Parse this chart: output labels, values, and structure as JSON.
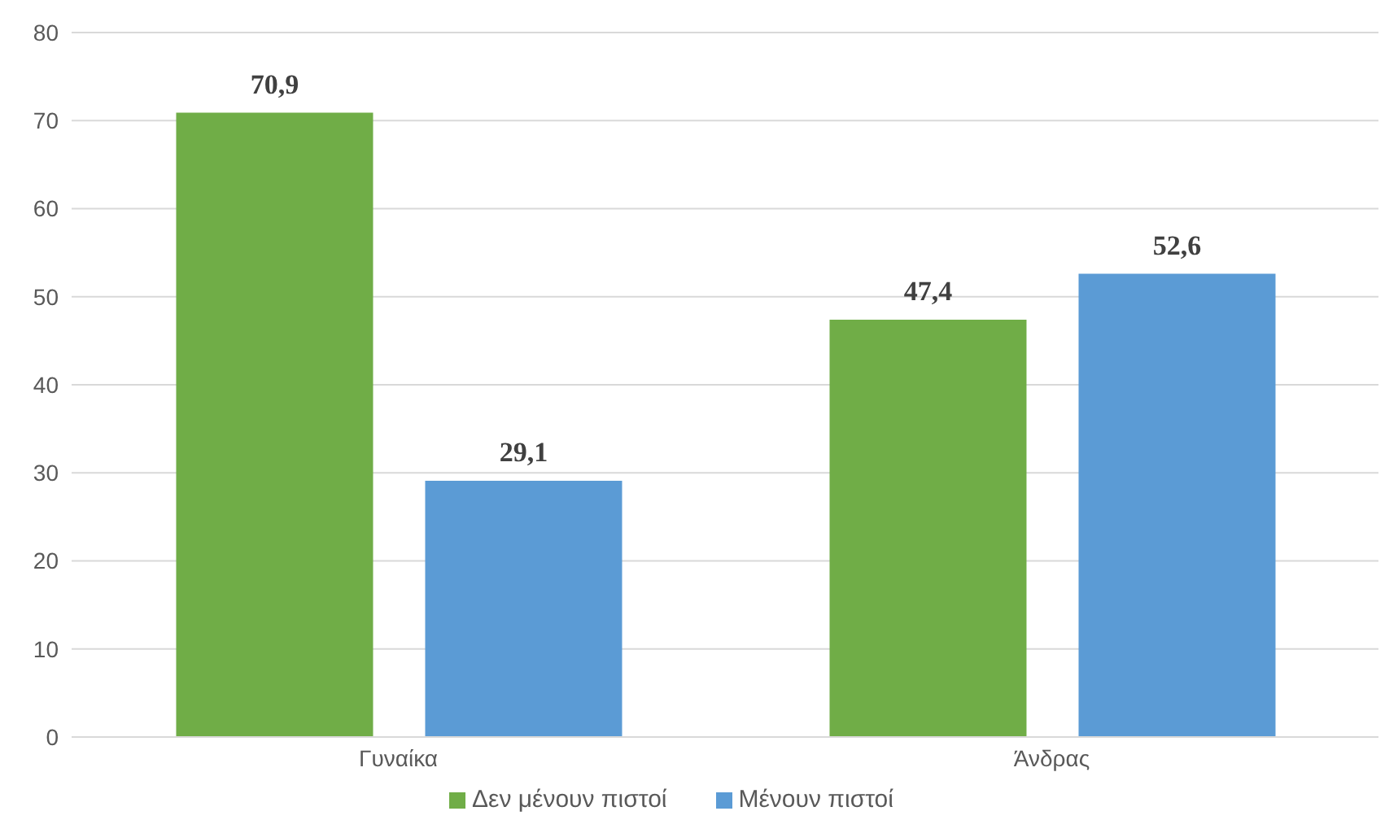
{
  "chart_data": {
    "type": "bar",
    "categories": [
      "Γυναίκα",
      "Άνδρας"
    ],
    "series": [
      {
        "name": "Δεν μένουν πιστοί",
        "color": "#70ad47",
        "values": [
          70.9,
          47.4
        ],
        "value_labels": [
          "70,9",
          "47,4"
        ]
      },
      {
        "name": "Μένουν πιστοί",
        "color": "#5b9bd5",
        "values": [
          29.1,
          52.6
        ],
        "value_labels": [
          "29,1",
          "52,6"
        ]
      }
    ],
    "ylim": [
      0,
      80
    ],
    "yticks": [
      0,
      10,
      20,
      30,
      40,
      50,
      60,
      70,
      80
    ],
    "grid": "y",
    "legend": "bottom"
  }
}
